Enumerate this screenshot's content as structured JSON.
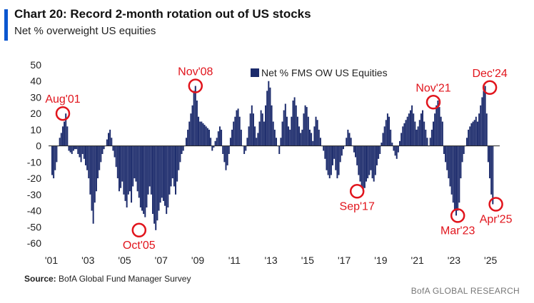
{
  "header": {
    "title": "Chart 20: Record 2-month rotation out of US stocks",
    "subtitle": "Net % overweight US equities"
  },
  "footer": {
    "source_label": "Source:",
    "source_text": "BofA Global Fund Manager Survey",
    "brand": "BofA GLOBAL RESEARCH"
  },
  "colors": {
    "bar": "#1b2a6b",
    "annotation": "#e1141c",
    "accent": "#0b57d0"
  },
  "chart_data": {
    "type": "bar",
    "title": "Chart 20: Record 2-month rotation out of US stocks",
    "ylabel": "",
    "xlabel": "",
    "ylim": [
      -60,
      50
    ],
    "yticks": [
      50,
      40,
      30,
      20,
      10,
      0,
      -10,
      -20,
      -30,
      -40,
      -50,
      -60
    ],
    "x_ticks": [
      "'01",
      "'03",
      "'05",
      "'07",
      "'09",
      "'11",
      "'13",
      "'15",
      "'17",
      "'19",
      "'21",
      "'23",
      "'25"
    ],
    "x_start_year": 2001,
    "x_end_year": 2025.5,
    "grid": false,
    "legend_position": "top-center",
    "series": [
      {
        "name": "Net % FMS OW US Equities",
        "monthly_start": "2001-01",
        "values": [
          -18,
          -20,
          -15,
          -10,
          0,
          5,
          8,
          12,
          15,
          20,
          12,
          -3,
          -4,
          -5,
          -3,
          -2,
          -2,
          -5,
          -7,
          -10,
          -5,
          -8,
          -12,
          -15,
          -20,
          -30,
          -40,
          -48,
          -35,
          -28,
          -20,
          -15,
          -10,
          -5,
          -2,
          0,
          4,
          8,
          10,
          5,
          -3,
          -7,
          -13,
          -20,
          -28,
          -26,
          -22,
          -30,
          -34,
          -38,
          -30,
          -28,
          -35,
          -25,
          -20,
          -22,
          -28,
          -32,
          -38,
          -40,
          -42,
          -44,
          -38,
          -30,
          -25,
          -30,
          -42,
          -48,
          -52,
          -46,
          -40,
          -35,
          -32,
          -34,
          -37,
          -42,
          -38,
          -30,
          -25,
          -20,
          -25,
          -30,
          -22,
          -15,
          -10,
          -5,
          -3,
          0,
          5,
          10,
          15,
          20,
          25,
          34,
          37,
          28,
          18,
          15,
          15,
          14,
          13,
          12,
          11,
          10,
          5,
          -3,
          -1,
          3,
          5,
          9,
          12,
          10,
          -5,
          -10,
          -15,
          -12,
          -5,
          5,
          10,
          15,
          18,
          22,
          23,
          18,
          10,
          0,
          -5,
          -3,
          5,
          12,
          20,
          25,
          20,
          12,
          5,
          8,
          15,
          22,
          20,
          15,
          25,
          34,
          40,
          36,
          25,
          15,
          10,
          5,
          0,
          -5,
          5,
          15,
          22,
          26,
          18,
          12,
          10,
          18,
          28,
          30,
          25,
          18,
          12,
          8,
          10,
          20,
          25,
          24,
          18,
          10,
          8,
          3,
          12,
          18,
          16,
          10,
          5,
          0,
          -3,
          -8,
          -15,
          -18,
          -20,
          -18,
          -12,
          -8,
          -15,
          -20,
          -18,
          -10,
          -6,
          -2,
          0,
          5,
          10,
          8,
          5,
          0,
          -4,
          -7,
          -12,
          -18,
          -22,
          -25,
          -28,
          -26,
          -22,
          -20,
          -18,
          -15,
          -20,
          -22,
          -18,
          -12,
          -8,
          -5,
          2,
          8,
          12,
          16,
          20,
          18,
          10,
          2,
          -3,
          -6,
          -8,
          -4,
          3,
          8,
          12,
          14,
          16,
          18,
          20,
          22,
          25,
          20,
          15,
          10,
          12,
          16,
          20,
          22,
          15,
          10,
          5,
          0,
          5,
          10,
          15,
          20,
          25,
          28,
          24,
          18,
          15,
          -5,
          -10,
          -15,
          -20,
          -25,
          -30,
          -35,
          -40,
          -43,
          -40,
          -35,
          -20,
          -10,
          -5,
          0,
          5,
          10,
          12,
          14,
          15,
          16,
          18,
          15,
          20,
          25,
          30,
          34,
          37,
          20,
          -10,
          -20,
          -30,
          -36
        ]
      }
    ],
    "annotations": [
      {
        "label": "Aug'01",
        "date": "2001-08",
        "value": 20
      },
      {
        "label": "Oct'05",
        "date": "2005-10",
        "value": -52
      },
      {
        "label": "Nov'08",
        "date": "2008-11",
        "value": 37
      },
      {
        "label": "Sep'17",
        "date": "2017-09",
        "value": -28
      },
      {
        "label": "Nov'21",
        "date": "2021-11",
        "value": 27
      },
      {
        "label": "Mar'23",
        "date": "2023-03",
        "value": -43
      },
      {
        "label": "Dec'24",
        "date": "2024-12",
        "value": 36
      },
      {
        "label": "Apr'25",
        "date": "2025-04",
        "value": -36
      }
    ]
  }
}
